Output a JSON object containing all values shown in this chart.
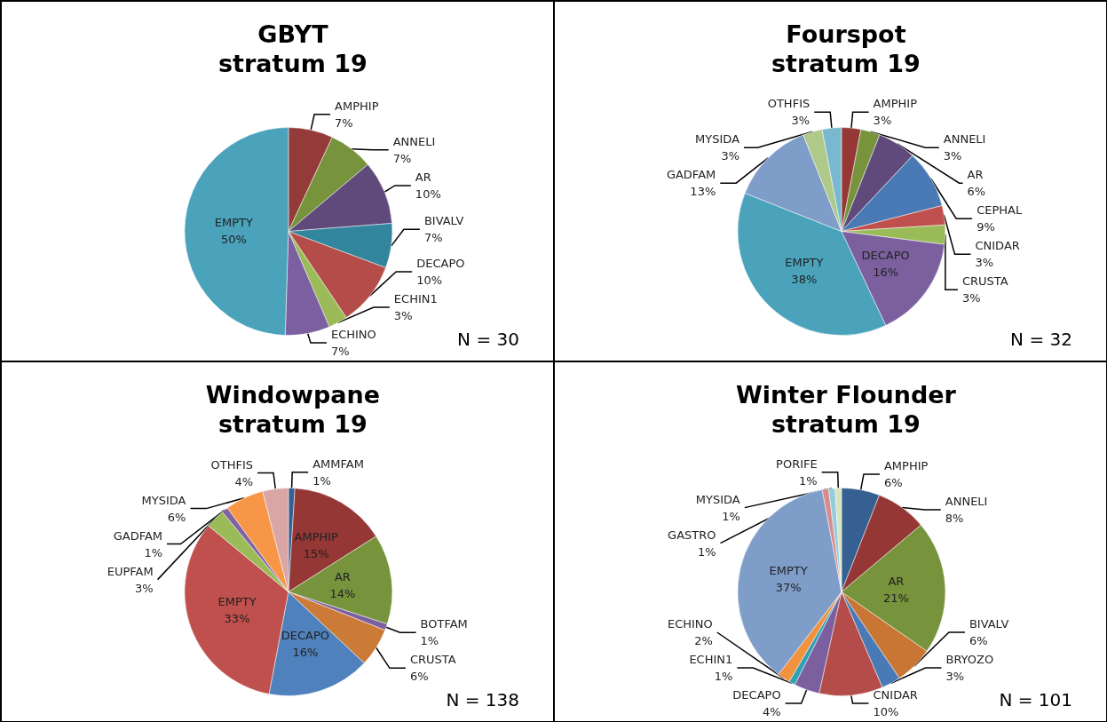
{
  "chart_data": [
    {
      "type": "pie",
      "title": "GBYT",
      "subtitle": "stratum 19",
      "annotations": [
        "N = 30"
      ],
      "categories": [
        "AMPHIP",
        "ANNELI",
        "AR",
        "BIVALV",
        "DECAPO",
        "ECHIN1",
        "ECHINO",
        "EMPTY"
      ],
      "values": [
        7,
        7,
        10,
        7,
        10,
        3,
        7,
        50
      ],
      "value_labels": [
        "7%",
        "7%",
        "10%",
        "7%",
        "10%",
        "3%",
        "7%",
        "50%"
      ],
      "colors": [
        "#943b3a",
        "#77933c",
        "#604a7b",
        "#31859c",
        "#b44c49",
        "#9bbb59",
        "#7c5fa0",
        "#4aa2bb"
      ]
    },
    {
      "type": "pie",
      "title": "Fourspot",
      "subtitle": "stratum 19",
      "annotations": [
        "N = 32"
      ],
      "categories": [
        "AMPHIP",
        "ANNELI",
        "AR",
        "CEPHAL",
        "CNIDAR",
        "CRUSTA",
        "DECAPO",
        "EMPTY",
        "GADFAM",
        "MYSIDA",
        "OTHFIS"
      ],
      "values": [
        3,
        3,
        6,
        9,
        3,
        3,
        16,
        38,
        13,
        3,
        3
      ],
      "value_labels": [
        "3%",
        "3%",
        "6%",
        "9%",
        "3%",
        "3%",
        "16%",
        "38%",
        "13%",
        "3%",
        "3%"
      ],
      "colors": [
        "#953735",
        "#77933c",
        "#604a7b",
        "#4a7ab5",
        "#c0504d",
        "#9bbb59",
        "#7b5f9e",
        "#4aa2bb",
        "#7f9dc9",
        "#aec98a",
        "#7ab8cf"
      ]
    },
    {
      "type": "pie",
      "title": "Windowpane",
      "subtitle": "stratum 19",
      "annotations": [
        "N = 138"
      ],
      "categories": [
        "AMMFAM",
        "AMPHIP",
        "AR",
        "BOTFAM",
        "CRUSTA",
        "DECAPO",
        "EMPTY",
        "EUPFAM",
        "GADFAM",
        "MYSIDA",
        "OTHFIS"
      ],
      "values": [
        1,
        15,
        14,
        1,
        6,
        16,
        33,
        3,
        1,
        6,
        4
      ],
      "value_labels": [
        "1%",
        "15%",
        "14%",
        "1%",
        "6%",
        "16%",
        "33%",
        "3%",
        "1%",
        "6%",
        "4%"
      ],
      "colors": [
        "#376092",
        "#953735",
        "#77933c",
        "#7b5f9e",
        "#cc7a38",
        "#4f81bd",
        "#c0504d",
        "#9bbb59",
        "#8064a2",
        "#f79646",
        "#d9a5a5"
      ]
    },
    {
      "type": "pie",
      "title": "Winter Flounder",
      "subtitle": "stratum 19",
      "annotations": [
        "N = 101"
      ],
      "categories": [
        "AMPHIP",
        "ANNELI",
        "AR",
        "BIVALV",
        "BRYOZO",
        "CNIDAR",
        "DECAPO",
        "ECHIN1",
        "ECHINO",
        "EMPTY",
        "GASTRO",
        "MYSIDA",
        "PORIFE"
      ],
      "values": [
        6,
        8,
        21,
        6,
        3,
        10,
        4,
        1,
        2,
        37,
        1,
        1,
        1
      ],
      "value_labels": [
        "6%",
        "8%",
        "21%",
        "6%",
        "3%",
        "10%",
        "4%",
        "1%",
        "2%",
        "37%",
        "1%",
        "1%",
        "1%"
      ],
      "colors": [
        "#376092",
        "#953735",
        "#77933c",
        "#c97533",
        "#4a7ab5",
        "#b44c49",
        "#7b5f9e",
        "#31a0b5",
        "#f0923e",
        "#7f9dc9",
        "#d98b8b",
        "#93cddd",
        "#d7e4bd"
      ]
    }
  ]
}
